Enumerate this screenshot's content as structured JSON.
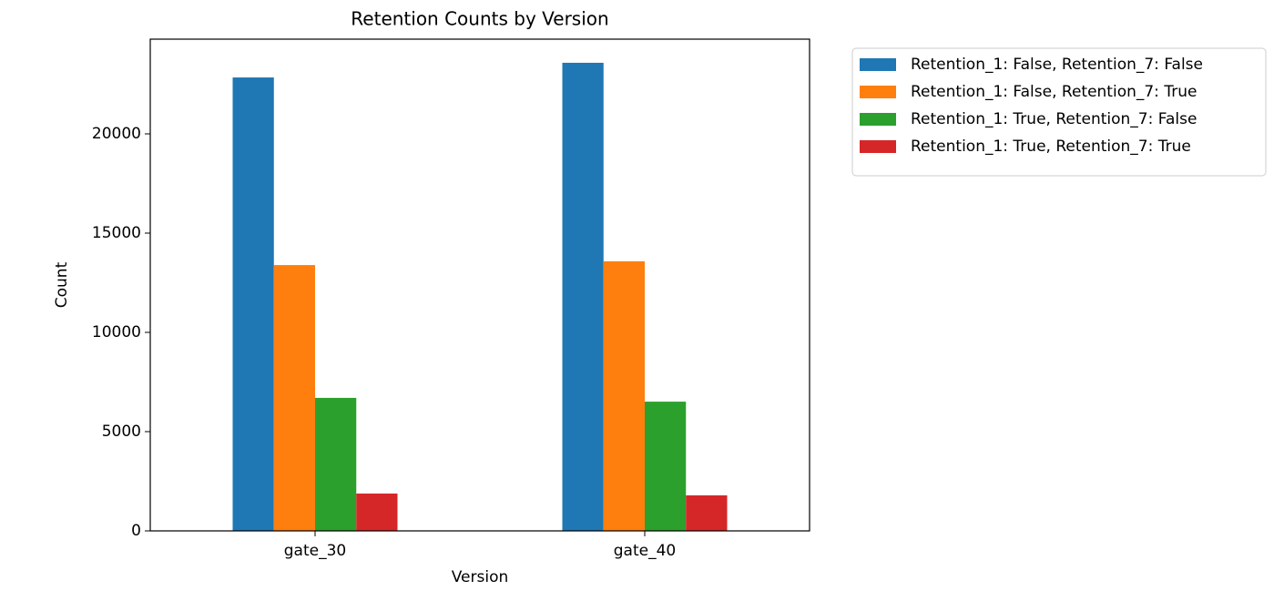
{
  "chart_data": {
    "type": "bar",
    "title": "Retention Counts by Version",
    "x_label": "Version",
    "y_label": "Count",
    "categories": [
      "gate_30",
      "gate_40"
    ],
    "series": [
      {
        "name": "Retention_1: False, Retention_7: False",
        "color": "#1f77b4",
        "values": [
          22840,
          23580
        ]
      },
      {
        "name": "Retention_1: False, Retention_7: True",
        "color": "#ff7f0e",
        "values": [
          13390,
          13580
        ]
      },
      {
        "name": "Retention_1: True, Retention_7: False",
        "color": "#2ca02c",
        "values": [
          6700,
          6510
        ]
      },
      {
        "name": "Retention_1: True, Retention_7: True",
        "color": "#d62728",
        "values": [
          1880,
          1790
        ]
      }
    ],
    "ylim": [
      0,
      24770
    ],
    "yticks": [
      0,
      5000,
      10000,
      15000,
      20000
    ],
    "grid": false,
    "legend": "outside-right"
  }
}
